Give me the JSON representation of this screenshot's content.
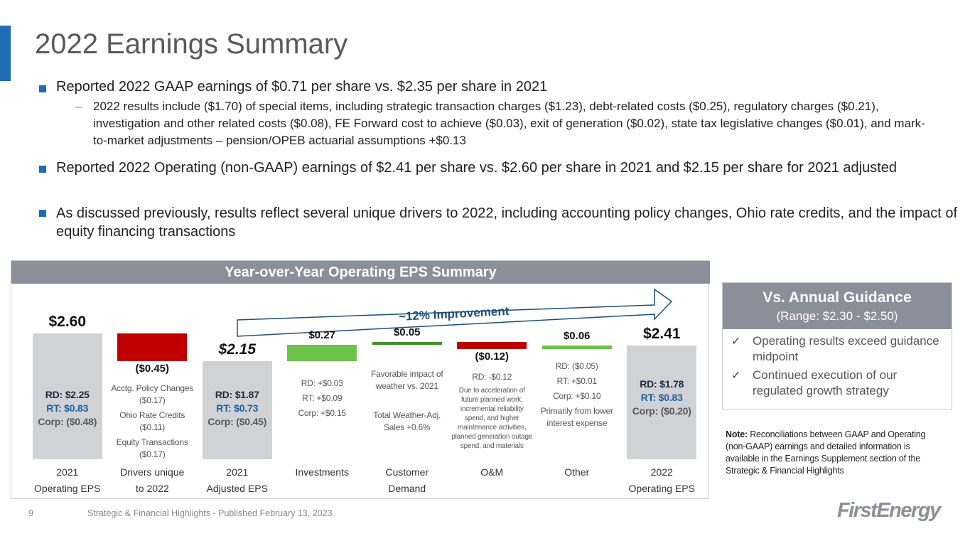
{
  "header": {
    "title": "2022 Earnings Summary"
  },
  "bullets": [
    {
      "text": "Reported 2022 GAAP earnings of $0.71 per share vs. $2.35 per share in 2021",
      "sub": [
        "2022 results include ($1.70) of special items, including strategic transaction charges ($1.23), debt-related costs ($0.25), regulatory charges ($0.21), investigation and other related costs ($0.08), FE Forward cost to achieve ($0.03), exit of generation ($0.02), state tax legislative changes ($0.01), and mark-to-market adjustments – pension/OPEB actuarial assumptions +$0.13"
      ]
    },
    {
      "text": "Reported 2022 Operating (non-GAAP) earnings of $2.41 per share vs. $2.60 per share in 2021 and $2.15 per share for 2021 adjusted"
    },
    {
      "text": "As discussed previously, results reflect several unique drivers to 2022, including accounting policy changes, Ohio rate credits, and the impact of equity financing transactions"
    }
  ],
  "chart_data": {
    "type": "waterfall",
    "title": "Year-over-Year Operating EPS Summary",
    "categories": [
      "2021\nOperating EPS",
      "Drivers unique\nto 2022",
      "2021\nAdjusted EPS",
      "Investments",
      "Customer\nDemand",
      "O&M",
      "Other",
      "2022\nOperating EPS"
    ],
    "values": [
      2.6,
      -0.45,
      2.15,
      0.27,
      0.05,
      -0.12,
      0.06,
      2.41
    ],
    "value_labels": [
      "$2.60",
      "($0.45)",
      "$2.15",
      "$0.27",
      "$0.05",
      "($0.12)",
      "$0.06",
      "$2.41"
    ],
    "colors": [
      "#d0d2d6",
      "#c00000",
      "#d0d2d6",
      "#6cc24a",
      "#3f8f2a",
      "#c00000",
      "#6cc24a",
      "#d0d2d6"
    ],
    "ylim": [
      0.55,
      3.0
    ],
    "notes": [
      [
        "RD: $2.25",
        "RT: $0.83",
        "Corp: ($0.48)"
      ],
      [
        "Acctg. Policy Changes ($0.17)",
        "Ohio Rate Credits ($0.11)",
        "Equity Transactions ($0.17)"
      ],
      [
        "RD: $1.87",
        "RT: $0.73",
        "Corp: ($0.45)"
      ],
      [
        "RD: +$0.03",
        "RT: +$0.09",
        "Corp: +$0.15"
      ],
      [
        "Favorable impact of weather vs. 2021",
        "Total Weather-Adj. Sales +0.6%"
      ],
      [
        "RD: -$0.12",
        "Due to acceleration of future planned work, incremental reliability spend, and higher maintenance activities, planned generation outage spend, and materials"
      ],
      [
        "RD: ($0.05)",
        "RT: +$0.01",
        "Corp: +$0.10",
        "Primarily from lower interest expense"
      ],
      [
        "RD: $1.78",
        "RT: $0.83",
        "Corp: ($0.20)"
      ]
    ],
    "annotation": "~12% Improvement"
  },
  "guidance": {
    "title": "Vs. Annual Guidance",
    "subtitle": "(Range: $2.30 - $2.50)",
    "items": [
      "Operating results exceed guidance midpoint",
      "Continued execution of our regulated growth strategy"
    ]
  },
  "note": {
    "label": "Note:",
    "text": "Reconciliations between GAAP and Operating (non-GAAP) earnings and detailed information is available in the Earnings Supplement section of the Strategic & Financial Highlights"
  },
  "footer": {
    "page": 9,
    "text": "Strategic & Financial Highlights - Published February 13, 2023",
    "logo": "FirstEnergy"
  }
}
